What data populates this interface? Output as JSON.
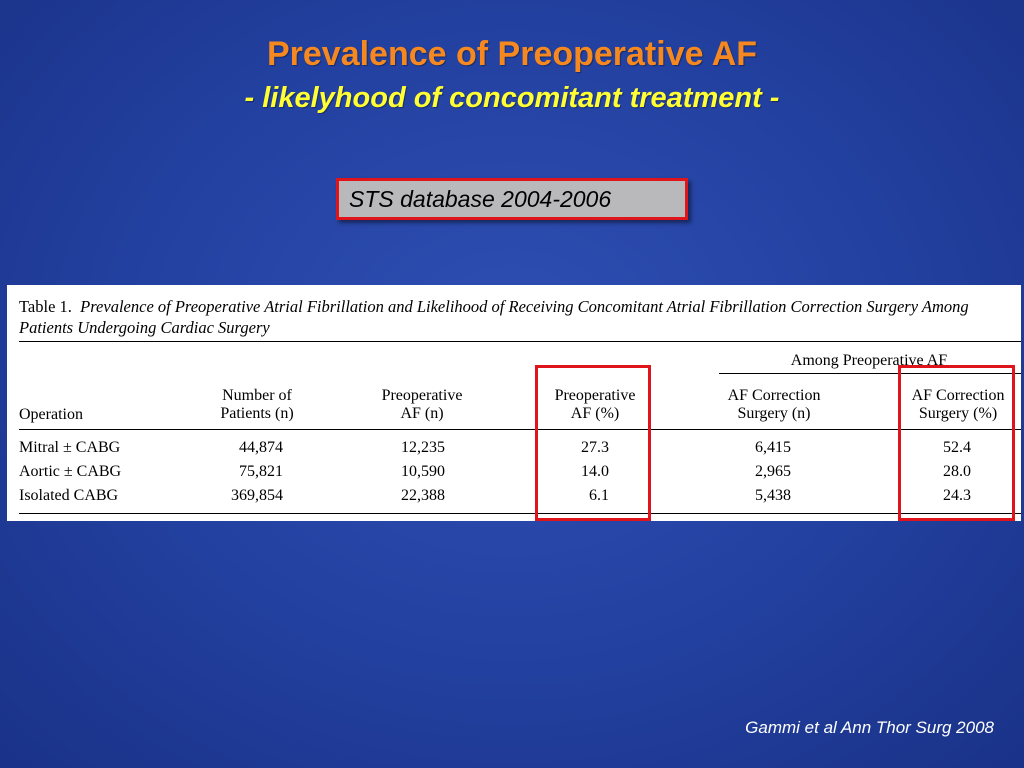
{
  "title": "Prevalence of Preoperative AF",
  "subtitle": "- likelyhood of concomitant treatment -",
  "source_box": "STS database 2004-2006",
  "table": {
    "caption_lead": "Table 1.",
    "caption_text": "Prevalence of Preoperative Atrial Fibrillation and Likelihood of Receiving Concomitant Atrial Fibrillation Correction Surgery Among Patients Undergoing Cardiac Surgery",
    "group_header": "Among Preoperative AF",
    "headers": [
      {
        "l1": "",
        "l2": "Operation"
      },
      {
        "l1": "Number of",
        "l2": "Patients (n)"
      },
      {
        "l1": "Preoperative",
        "l2": "AF (n)"
      },
      {
        "l1": "Preoperative",
        "l2": "AF (%)"
      },
      {
        "l1": "AF Correction",
        "l2": "Surgery (n)"
      },
      {
        "l1": "AF Correction",
        "l2": "Surgery (%)"
      }
    ],
    "rows": [
      [
        "Mitral ± CABG",
        "44,874",
        "12,235",
        "27.3",
        "6,415",
        "52.4"
      ],
      [
        "Aortic ± CABG",
        "75,821",
        "10,590",
        "14.0",
        "2,965",
        "28.0"
      ],
      [
        "Isolated CABG",
        "369,854",
        "22,388",
        "6.1",
        "5,438",
        "24.3"
      ]
    ]
  },
  "highlight_color": "#e0141b",
  "citation": "Gammi et al Ann Thor Surg 2008"
}
